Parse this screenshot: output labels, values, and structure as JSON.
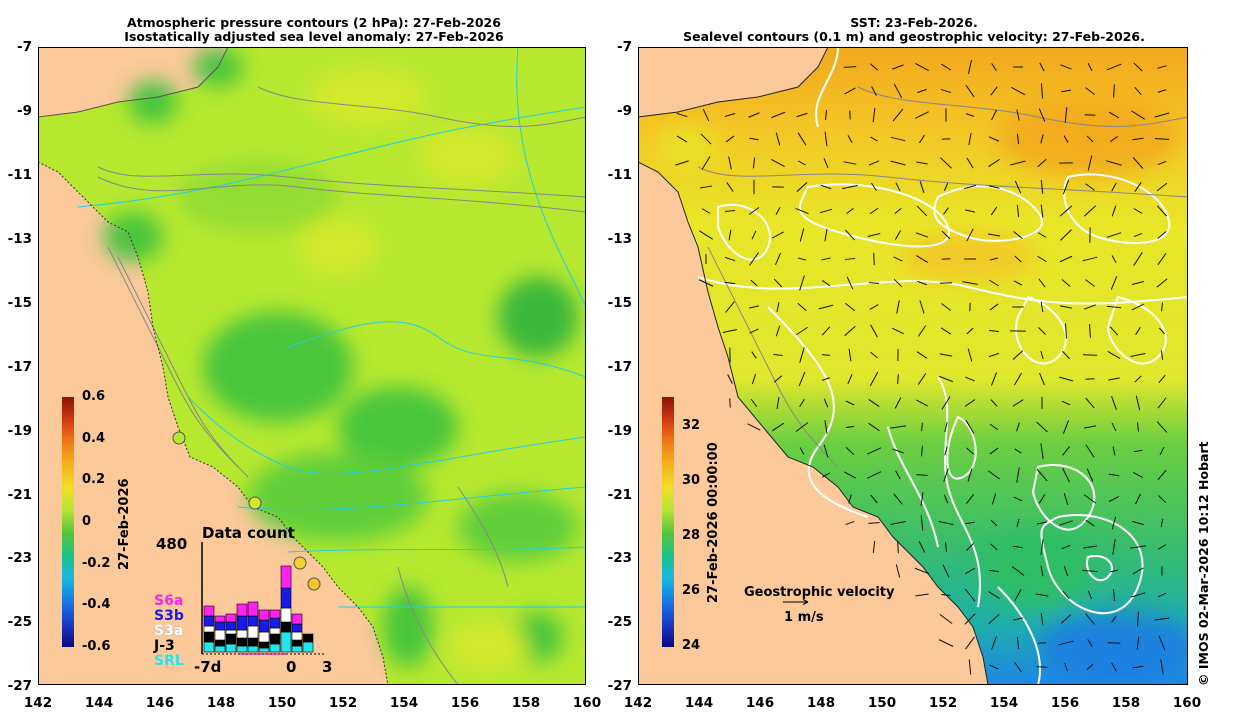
{
  "left_panel": {
    "title_line1": "Atmospheric pressure contours (2 hPa): 27-Feb-2026",
    "title_line2": "Isostatically adjusted sea level anomaly: 27-Feb-2026",
    "colorbar": {
      "ticks": [
        "0.6",
        "0.4",
        "0.2",
        "0",
        "-0.2",
        "-0.4",
        "-0.6"
      ],
      "label": "27-Feb-2026"
    },
    "data_count": {
      "title": "Data count",
      "max": "480",
      "missions": [
        {
          "name": "S6a",
          "color": "#ff22ee"
        },
        {
          "name": "S3b",
          "color": "#1a1ae6"
        },
        {
          "name": "S3a",
          "color": "#ffffff"
        },
        {
          "name": "J-3",
          "color": "#000000"
        },
        {
          "name": "SRL",
          "color": "#22e6ee"
        }
      ],
      "x_labels": [
        "-7d",
        "0",
        "3"
      ]
    }
  },
  "right_panel": {
    "title_line1": "SST: 23-Feb-2026.",
    "title_line2": "Sealevel contours (0.1 m) and geostrophic velocity: 27-Feb-2026.",
    "colorbar": {
      "ticks": [
        "32",
        "30",
        "28",
        "26",
        "24"
      ],
      "label": "27-Feb-2026 00:00:00"
    },
    "geostrophic_label": "Geostrophic velocity",
    "scale_label": "1 m/s"
  },
  "axes": {
    "y_ticks": [
      "-7",
      "-9",
      "-11",
      "-13",
      "-15",
      "-17",
      "-19",
      "-21",
      "-23",
      "-25",
      "-27"
    ],
    "x_ticks": [
      "142",
      "144",
      "146",
      "148",
      "150",
      "152",
      "154",
      "156",
      "158",
      "160"
    ]
  },
  "colors": {
    "land": "#fbc99a",
    "ssl_base": "#b6e830",
    "ssl_green": "#3cc23c",
    "sst_warm": "#f7b21a",
    "sst_yellow": "#e8e627",
    "sst_green": "#3bbf55",
    "sst_blue": "#1e9ee6"
  },
  "credit": "© IMOS 02-Mar-2026 10:12 Hobart"
}
